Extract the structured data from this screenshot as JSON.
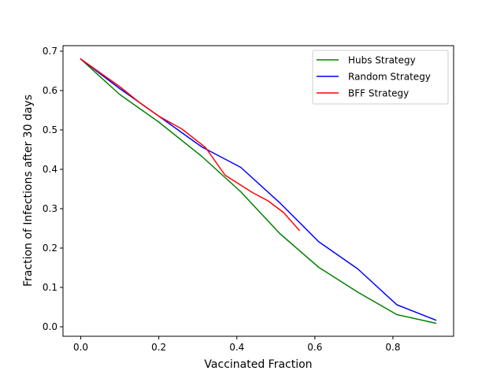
{
  "chart_data": {
    "type": "line",
    "title": "",
    "xlabel": "Vaccinated Fraction",
    "ylabel": "Fraction of Infections after 30 days",
    "xlim": [
      -0.0455,
      0.9555
    ],
    "ylim": [
      -0.024,
      0.714
    ],
    "xticks": [
      0.0,
      0.2,
      0.4,
      0.6,
      0.8
    ],
    "xtick_labels": [
      "0.0",
      "0.2",
      "0.4",
      "0.6",
      "0.8"
    ],
    "yticks": [
      0.0,
      0.1,
      0.2,
      0.3,
      0.4,
      0.5,
      0.6,
      0.7
    ],
    "ytick_labels": [
      "0.0",
      "0.1",
      "0.2",
      "0.3",
      "0.4",
      "0.5",
      "0.6",
      "0.7"
    ],
    "grid": false,
    "legend_position": "upper right",
    "series": [
      {
        "name": "Hubs Strategy",
        "color": "#008000",
        "x": [
          0.0,
          0.1,
          0.2,
          0.31,
          0.41,
          0.51,
          0.61,
          0.71,
          0.81,
          0.91
        ],
        "y": [
          0.68,
          0.59,
          0.52,
          0.433,
          0.343,
          0.237,
          0.151,
          0.088,
          0.031,
          0.009
        ]
      },
      {
        "name": "Random Strategy",
        "color": "#0000ff",
        "x": [
          0.0,
          0.1,
          0.2,
          0.31,
          0.41,
          0.51,
          0.61,
          0.71,
          0.81,
          0.91
        ],
        "y": [
          0.68,
          0.605,
          0.535,
          0.457,
          0.405,
          0.315,
          0.216,
          0.147,
          0.056,
          0.017
        ]
      },
      {
        "name": "BFF Strategy",
        "color": "#ff0000",
        "x": [
          0.0,
          0.05,
          0.1,
          0.15,
          0.2,
          0.26,
          0.32,
          0.37,
          0.44,
          0.48,
          0.52,
          0.56
        ],
        "y": [
          0.68,
          0.645,
          0.61,
          0.57,
          0.535,
          0.502,
          0.455,
          0.385,
          0.341,
          0.32,
          0.29,
          0.245
        ]
      }
    ]
  }
}
